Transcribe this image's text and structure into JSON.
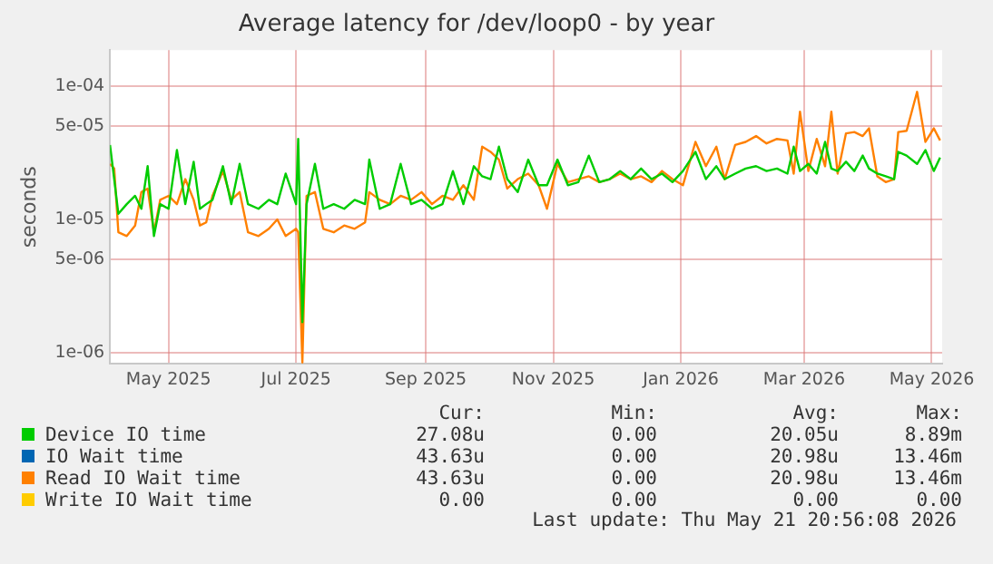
{
  "chart_data": {
    "type": "line",
    "title": "Average latency for /dev/loop0 - by year",
    "ylabel": "seconds",
    "x": [
      "2025-04-18",
      "2025-04-20",
      "2025-04-22",
      "2025-04-26",
      "2025-04-30",
      "2025-05-03",
      "2025-05-06",
      "2025-05-09",
      "2025-05-12",
      "2025-05-16",
      "2025-05-20",
      "2025-05-24",
      "2025-05-28",
      "2025-05-31",
      "2025-06-03",
      "2025-06-06",
      "2025-06-11",
      "2025-06-15",
      "2025-06-19",
      "2025-06-23",
      "2025-06-28",
      "2025-07-03",
      "2025-07-07",
      "2025-07-11",
      "2025-07-16",
      "2025-07-17",
      "2025-07-19",
      "2025-07-21",
      "2025-07-25",
      "2025-07-29",
      "2025-08-03",
      "2025-08-08",
      "2025-08-13",
      "2025-08-18",
      "2025-08-20",
      "2025-08-25",
      "2025-08-30",
      "2025-09-04",
      "2025-09-09",
      "2025-09-14",
      "2025-09-19",
      "2025-09-24",
      "2025-09-29",
      "2025-10-04",
      "2025-10-09",
      "2025-10-13",
      "2025-10-17",
      "2025-10-21",
      "2025-10-25",
      "2025-10-30",
      "2025-11-04",
      "2025-11-09",
      "2025-11-13",
      "2025-11-18",
      "2025-11-23",
      "2025-11-28",
      "2025-12-03",
      "2025-12-08",
      "2025-12-13",
      "2025-12-18",
      "2025-12-23",
      "2025-12-28",
      "2026-01-02",
      "2026-01-07",
      "2026-01-12",
      "2026-01-17",
      "2026-01-23",
      "2026-01-28",
      "2026-02-02",
      "2026-02-06",
      "2026-02-11",
      "2026-02-16",
      "2026-02-21",
      "2026-02-26",
      "2026-03-03",
      "2026-03-08",
      "2026-03-11",
      "2026-03-14",
      "2026-03-18",
      "2026-03-22",
      "2026-03-26",
      "2026-03-29",
      "2026-04-01",
      "2026-04-05",
      "2026-04-09",
      "2026-04-13",
      "2026-04-16",
      "2026-04-20",
      "2026-04-24",
      "2026-04-28",
      "2026-04-30",
      "2026-05-04",
      "2026-05-09",
      "2026-05-13",
      "2026-05-17",
      "2026-05-20"
    ],
    "series": [
      {
        "name": "Device IO time",
        "color": "#00cc00",
        "values": [
          3.6e-05,
          2e-05,
          1.1e-05,
          1.3e-05,
          1.5e-05,
          1.2e-05,
          2.5e-05,
          7.5e-06,
          1.3e-05,
          1.2e-05,
          3.3e-05,
          1.3e-05,
          2.7e-05,
          1.2e-05,
          1.3e-05,
          1.4e-05,
          2.5e-05,
          1.3e-05,
          2.6e-05,
          1.3e-05,
          1.2e-05,
          1.4e-05,
          1.3e-05,
          2.2e-05,
          1.3e-05,
          4e-05,
          1.7e-06,
          1.3e-05,
          2.6e-05,
          1.2e-05,
          1.3e-05,
          1.2e-05,
          1.4e-05,
          1.3e-05,
          2.8e-05,
          1.2e-05,
          1.3e-05,
          2.6e-05,
          1.3e-05,
          1.4e-05,
          1.2e-05,
          1.3e-05,
          2.3e-05,
          1.3e-05,
          2.5e-05,
          2.1e-05,
          2e-05,
          3.5e-05,
          2e-05,
          1.6e-05,
          2.8e-05,
          1.8e-05,
          1.8e-05,
          2.8e-05,
          1.8e-05,
          1.9e-05,
          3e-05,
          1.9e-05,
          2e-05,
          2.3e-05,
          2e-05,
          2.4e-05,
          2e-05,
          2.2e-05,
          1.9e-05,
          2.3e-05,
          3.2e-05,
          2e-05,
          2.5e-05,
          2e-05,
          2.2e-05,
          2.4e-05,
          2.5e-05,
          2.3e-05,
          2.4e-05,
          2.2e-05,
          3.5e-05,
          2.3e-05,
          2.6e-05,
          2.2e-05,
          3.8e-05,
          2.4e-05,
          2.3e-05,
          2.7e-05,
          2.3e-05,
          3e-05,
          2.4e-05,
          2.2e-05,
          2.1e-05,
          2e-05,
          3.2e-05,
          3e-05,
          2.6e-05,
          3.3e-05,
          2.3e-05,
          2.9e-05
        ]
      },
      {
        "name": "IO Wait time",
        "color": "#0066b3",
        "values": [
          null,
          null,
          null,
          null,
          null,
          null,
          null,
          null,
          null,
          null,
          null,
          null,
          null,
          null,
          null,
          null,
          null,
          null,
          null,
          null,
          null,
          null,
          null,
          null,
          null,
          null,
          null,
          null,
          null,
          null,
          null,
          null,
          null,
          null,
          null,
          null,
          null,
          null,
          null,
          null,
          null,
          null,
          null,
          null,
          null,
          null,
          null,
          null,
          null,
          null,
          null,
          null,
          null,
          null,
          null,
          null,
          null,
          null,
          null,
          null,
          null,
          null,
          null,
          null,
          null,
          null,
          null,
          null,
          null,
          null,
          null,
          null,
          null,
          null,
          null,
          null,
          null,
          null,
          null,
          null,
          null,
          null,
          null,
          null,
          null,
          null,
          null,
          null,
          null,
          null,
          null,
          null,
          null,
          null,
          null,
          null
        ]
      },
      {
        "name": "Read IO Wait time",
        "color": "#ff8000",
        "values": [
          2.6e-05,
          2.4e-05,
          8e-06,
          7.5e-06,
          9e-06,
          1.6e-05,
          1.7e-05,
          8e-06,
          1.4e-05,
          1.5e-05,
          1.3e-05,
          2e-05,
          1.4e-05,
          9e-06,
          9.5e-06,
          1.5e-05,
          2.3e-05,
          1.4e-05,
          1.6e-05,
          8e-06,
          7.5e-06,
          8.5e-06,
          1e-05,
          7.5e-06,
          8.5e-06,
          8e-06,
          8.5e-07,
          1.5e-05,
          1.6e-05,
          8.5e-06,
          8e-06,
          9e-06,
          8.5e-06,
          9.5e-06,
          1.6e-05,
          1.4e-05,
          1.3e-05,
          1.5e-05,
          1.4e-05,
          1.6e-05,
          1.3e-05,
          1.5e-05,
          1.4e-05,
          1.8e-05,
          1.4e-05,
          3.5e-05,
          3.2e-05,
          2.8e-05,
          1.7e-05,
          2e-05,
          2.2e-05,
          1.8e-05,
          1.2e-05,
          2.6e-05,
          1.9e-05,
          2e-05,
          2.1e-05,
          1.9e-05,
          2e-05,
          2.2e-05,
          2e-05,
          2.1e-05,
          1.9e-05,
          2.3e-05,
          2e-05,
          1.8e-05,
          3.8e-05,
          2.5e-05,
          3.5e-05,
          2e-05,
          3.6e-05,
          3.8e-05,
          4.2e-05,
          3.7e-05,
          4e-05,
          3.9e-05,
          2.2e-05,
          6.4e-05,
          2.3e-05,
          4e-05,
          2.5e-05,
          6.4e-05,
          2.2e-05,
          4.4e-05,
          4.5e-05,
          4.2e-05,
          4.8e-05,
          2.1e-05,
          1.9e-05,
          2e-05,
          4.5e-05,
          4.6e-05,
          9e-05,
          3.8e-05,
          4.8e-05,
          3.9e-05
        ]
      },
      {
        "name": "Write IO Wait time",
        "color": "#ffcc00",
        "values": [
          null,
          null,
          null,
          null,
          null,
          null,
          null,
          null,
          null,
          null,
          null,
          null,
          null,
          null,
          null,
          null,
          null,
          null,
          null,
          null,
          null,
          null,
          null,
          null,
          null,
          null,
          null,
          null,
          null,
          null,
          null,
          null,
          null,
          null,
          null,
          null,
          null,
          null,
          null,
          null,
          null,
          null,
          null,
          null,
          null,
          null,
          null,
          null,
          null,
          null,
          null,
          null,
          null,
          null,
          null,
          null,
          null,
          null,
          null,
          null,
          null,
          null,
          null,
          null,
          null,
          null,
          null,
          null,
          null,
          null,
          null,
          null,
          null,
          null,
          null,
          null,
          null,
          null,
          null,
          null,
          null,
          null,
          null,
          null,
          null,
          null,
          null,
          null,
          null,
          null,
          null,
          null,
          null,
          null,
          null,
          null
        ]
      }
    ],
    "xlim": [
      "2025-04-18",
      "2026-05-21"
    ],
    "xticks": [
      {
        "value": "2025-05-16",
        "label": "May 2025"
      },
      {
        "value": "2025-07-16",
        "label": "Jul 2025"
      },
      {
        "value": "2025-09-16",
        "label": "Sep 2025"
      },
      {
        "value": "2025-11-16",
        "label": "Nov 2025"
      },
      {
        "value": "2026-01-16",
        "label": "Jan 2026"
      },
      {
        "value": "2026-03-16",
        "label": "Mar 2026"
      },
      {
        "value": "2026-05-16",
        "label": "May 2026"
      }
    ],
    "ylim": [
      8.3e-07,
      0.000185
    ],
    "yticks": [
      {
        "value": 1e-06,
        "label": "1e-06"
      },
      {
        "value": 5e-06,
        "label": "5e-06"
      },
      {
        "value": 1e-05,
        "label": "1e-05"
      },
      {
        "value": 5e-05,
        "label": "5e-05"
      },
      {
        "value": 0.0001,
        "label": "1e-04"
      }
    ],
    "log": "y",
    "grid": true,
    "legend": "bottom",
    "marker": "none",
    "line_style": "solid",
    "annotations": [
      "Cur:",
      "Min:",
      "Avg:",
      "Max:",
      "27.08u",
      "0.00",
      "20.05u",
      "8.89m",
      "43.63u",
      "0.00",
      "20.98u",
      "13.46m",
      "43.63u",
      "0.00",
      "20.98u",
      "13.46m",
      "0.00",
      "0.00",
      "0.00",
      "0.00",
      "Last update: Thu May 21 20:56:08 2026"
    ]
  }
}
